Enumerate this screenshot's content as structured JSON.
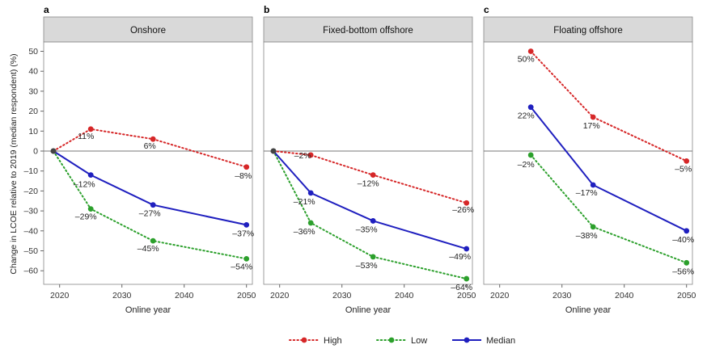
{
  "figure": {
    "ylabel": "Change in LCOE relative to 2019 (median respondent) (%)",
    "xlabel": "Online year"
  },
  "legend": [
    {
      "name": "High",
      "color": "#d62728",
      "dash": "dot"
    },
    {
      "name": "Low",
      "color": "#2ca02c",
      "dash": "dot"
    },
    {
      "name": "Median",
      "color": "#1f1fbf",
      "dash": "solid"
    }
  ],
  "chart_data": [
    {
      "type": "line",
      "panel_letter": "a",
      "title": "Onshore",
      "xlabel": "Online year",
      "ylabel": "Change in LCOE relative to 2019 (median respondent) (%)",
      "xlim": [
        2017,
        2051
      ],
      "ylim": [
        -68,
        55
      ],
      "xticks": [
        2020,
        2030,
        2040,
        2050
      ],
      "yticks": [
        50,
        40,
        30,
        20,
        10,
        0,
        -10,
        -20,
        -30,
        -40,
        -50,
        -60
      ],
      "series": [
        {
          "name": "High",
          "color": "#d62728",
          "dash": "dot",
          "x": [
            2019,
            2025,
            2035,
            2050
          ],
          "y": [
            0,
            11,
            6,
            -8
          ],
          "labels": [
            "",
            "11%",
            "6%",
            "–8%"
          ]
        },
        {
          "name": "Low",
          "color": "#2ca02c",
          "dash": "dot",
          "x": [
            2019,
            2025,
            2035,
            2050
          ],
          "y": [
            0,
            -29,
            -45,
            -54
          ],
          "labels": [
            "",
            "–29%",
            "–45%",
            "–54%"
          ]
        },
        {
          "name": "Median",
          "color": "#1f1fbf",
          "dash": "solid",
          "x": [
            2019,
            2025,
            2035,
            2050
          ],
          "y": [
            0,
            -12,
            -27,
            -37
          ],
          "labels": [
            "",
            "–12%",
            "–27%",
            "–37%"
          ]
        }
      ]
    },
    {
      "type": "line",
      "panel_letter": "b",
      "title": "Fixed-bottom offshore",
      "xlabel": "Online year",
      "xlim": [
        2017,
        2051
      ],
      "ylim": [
        -68,
        55
      ],
      "xticks": [
        2020,
        2030,
        2040,
        2050
      ],
      "series": [
        {
          "name": "High",
          "color": "#d62728",
          "dash": "dot",
          "x": [
            2019,
            2025,
            2035,
            2050
          ],
          "y": [
            0,
            -2,
            -12,
            -26
          ],
          "labels": [
            "",
            "–2%",
            "–12%",
            "–26%"
          ]
        },
        {
          "name": "Low",
          "color": "#2ca02c",
          "dash": "dot",
          "x": [
            2019,
            2025,
            2035,
            2050
          ],
          "y": [
            0,
            -36,
            -53,
            -64
          ],
          "labels": [
            "",
            "–36%",
            "–53%",
            "–64%"
          ]
        },
        {
          "name": "Median",
          "color": "#1f1fbf",
          "dash": "solid",
          "x": [
            2019,
            2025,
            2035,
            2050
          ],
          "y": [
            0,
            -21,
            -35,
            -49
          ],
          "labels": [
            "",
            "–21%",
            "–35%",
            "–49%"
          ]
        }
      ]
    },
    {
      "type": "line",
      "panel_letter": "c",
      "title": "Floating offshore",
      "xlabel": "Online year",
      "xlim": [
        2017,
        2051
      ],
      "ylim": [
        -68,
        55
      ],
      "xticks": [
        2020,
        2030,
        2040,
        2050
      ],
      "series": [
        {
          "name": "High",
          "color": "#d62728",
          "dash": "dot",
          "x": [
            2025,
            2035,
            2050
          ],
          "y": [
            50,
            17,
            -5
          ],
          "labels": [
            "50%",
            "17%",
            "–5%"
          ]
        },
        {
          "name": "Low",
          "color": "#2ca02c",
          "dash": "dot",
          "x": [
            2025,
            2035,
            2050
          ],
          "y": [
            -2,
            -38,
            -56
          ],
          "labels": [
            "–2%",
            "–38%",
            "–56%"
          ]
        },
        {
          "name": "Median",
          "color": "#1f1fbf",
          "dash": "solid",
          "x": [
            2025,
            2035,
            2050
          ],
          "y": [
            22,
            -17,
            -40
          ],
          "labels": [
            "22%",
            "–17%",
            "–40%"
          ]
        }
      ]
    }
  ]
}
